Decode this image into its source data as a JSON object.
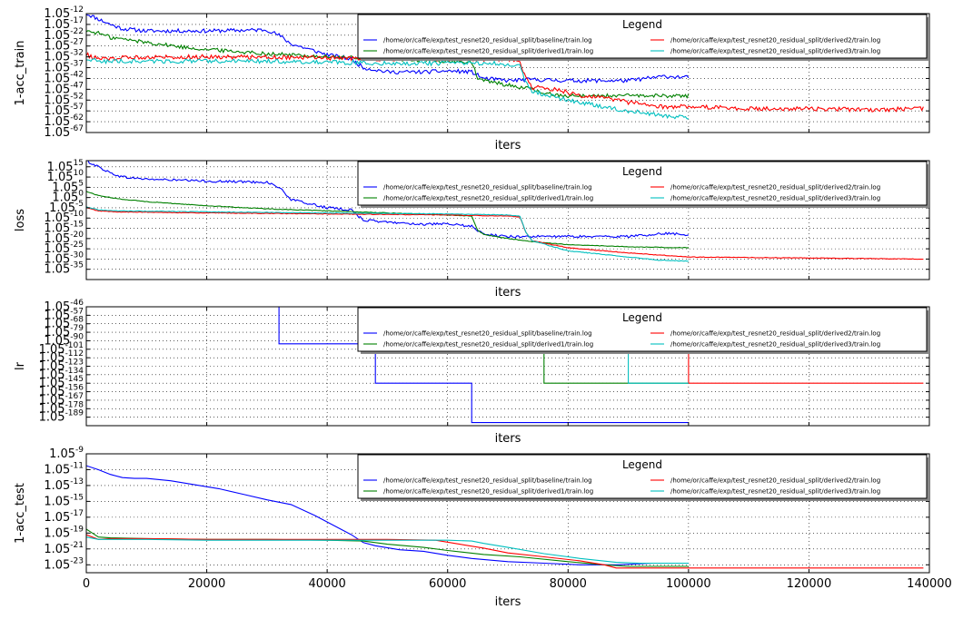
{
  "chart_data": [
    {
      "type": "line",
      "ylabel": "1-acc_train",
      "xlabel": "iters",
      "xlim": [
        0,
        140000
      ],
      "grid": true,
      "legend_placement": "top-right",
      "ytick_base": "1.05",
      "ytick_exponents": [
        "-12",
        "-17",
        "-22",
        "-27",
        "-32",
        "-37",
        "-42",
        "-47",
        "-52",
        "-57",
        "-62",
        "-67"
      ],
      "ylim": [
        -67,
        -12
      ],
      "legend": {
        "title": "Legend",
        "entries": [
          "/home/or/caffe/exp/test_resnet20_residual_split/baseline/train.log",
          "/home/or/caffe/exp/test_resnet20_residual_split/derived1/train.log",
          "/home/or/caffe/exp/test_resnet20_residual_split/derived2/train.log",
          "/home/or/caffe/exp/test_resnet20_residual_split/derived3/train.log"
        ]
      },
      "series": [
        {
          "name": "/home/or/caffe/exp/test_resnet20_residual_split/baseline/train.log",
          "color": "#0000ff",
          "noise": 0.9,
          "x": [
            0,
            2000,
            4000,
            6000,
            10000,
            20000,
            30000,
            32000,
            34000,
            40000,
            44000,
            46000,
            50000,
            56000,
            60000,
            64000,
            66000,
            70000,
            74000,
            80000,
            90000,
            96000,
            100000
          ],
          "y": [
            -12,
            -14.5,
            -17,
            -19,
            -20,
            -20,
            -19.5,
            -22,
            -26,
            -31,
            -33,
            -37,
            -39,
            -39,
            -38.5,
            -39,
            -42,
            -43,
            -42.5,
            -43,
            -43,
            -41,
            -41.5
          ]
        },
        {
          "name": "/home/or/caffe/exp/test_resnet20_residual_split/derived1/train.log",
          "color": "#008000",
          "noise": 0.9,
          "x": [
            0,
            2000,
            4000,
            8000,
            12000,
            16000,
            20000,
            30000,
            40000,
            50000,
            60000,
            64000,
            65000,
            66000,
            70000,
            74000,
            76000,
            80000,
            84000,
            90000,
            100000
          ],
          "y": [
            -20,
            -21,
            -23,
            -24.5,
            -26,
            -27.5,
            -28.5,
            -30.5,
            -32,
            -33,
            -34,
            -34.5,
            -42,
            -43,
            -45,
            -47,
            -49,
            -50,
            -50,
            -50,
            -50
          ]
        },
        {
          "name": "/home/or/caffe/exp/test_resnet20_residual_split/derived2/train.log",
          "color": "#ff0000",
          "noise": 1.0,
          "x": [
            0,
            2000,
            10000,
            20000,
            30000,
            40000,
            50000,
            60000,
            70000,
            72000,
            73000,
            74000,
            78000,
            82000,
            86000,
            90000,
            95000,
            100000,
            110000,
            120000,
            130000,
            139000
          ],
          "y": [
            -31,
            -33,
            -32,
            -32,
            -32,
            -32.5,
            -33,
            -33,
            -33,
            -34,
            -42,
            -46,
            -47,
            -50,
            -51,
            -53,
            -55,
            -55,
            -56,
            -56,
            -56.5,
            -56
          ]
        },
        {
          "name": "/home/or/caffe/exp/test_resnet20_residual_split/derived3/train.log",
          "color": "#00bfbf",
          "noise": 1.0,
          "x": [
            0,
            2000,
            10000,
            20000,
            30000,
            40000,
            50000,
            60000,
            68000,
            70000,
            72000,
            73000,
            74000,
            80000,
            86000,
            90000,
            95000,
            100000
          ],
          "y": [
            -33,
            -34,
            -34,
            -34,
            -34,
            -34.5,
            -35,
            -35,
            -35,
            -35.5,
            -36,
            -44,
            -48,
            -52,
            -55,
            -57,
            -59,
            -60
          ]
        }
      ]
    },
    {
      "type": "line",
      "ylabel": "loss",
      "xlabel": "iters",
      "xlim": [
        0,
        140000
      ],
      "grid": true,
      "legend_placement": "top-right",
      "ytick_base": "1.05",
      "ytick_exponents": [
        "15",
        "10",
        "5",
        "0",
        "-5",
        "-10",
        "-15",
        "-20",
        "-25",
        "-30",
        "-35"
      ],
      "ylim": [
        -40,
        18
      ],
      "legend": {
        "title": "Legend",
        "entries": [
          "/home/or/caffe/exp/test_resnet20_residual_split/baseline/train.log",
          "/home/or/caffe/exp/test_resnet20_residual_split/derived1/train.log",
          "/home/or/caffe/exp/test_resnet20_residual_split/derived2/train.log",
          "/home/or/caffe/exp/test_resnet20_residual_split/derived3/train.log"
        ]
      },
      "series": [
        {
          "name": "/home/or/caffe/exp/test_resnet20_residual_split/baseline/train.log",
          "color": "#0000ff",
          "noise": 0.6,
          "x": [
            0,
            2000,
            4000,
            6000,
            10000,
            20000,
            30000,
            32000,
            34000,
            40000,
            44000,
            46000,
            50000,
            56000,
            60000,
            64000,
            66000,
            70000,
            74000,
            80000,
            90000,
            96000,
            100000
          ],
          "y": [
            18,
            15,
            12,
            10,
            9,
            8,
            7.5,
            5,
            -1,
            -5,
            -6,
            -11,
            -12,
            -13,
            -13,
            -14,
            -18,
            -19,
            -19,
            -19,
            -19,
            -17.5,
            -18
          ]
        },
        {
          "name": "/home/or/caffe/exp/test_resnet20_residual_split/derived1/train.log",
          "color": "#008000",
          "noise": 0.15,
          "x": [
            0,
            2000,
            5000,
            10000,
            20000,
            30000,
            40000,
            50000,
            60000,
            64000,
            65000,
            66000,
            70000,
            74000,
            80000,
            90000,
            100000
          ],
          "y": [
            3,
            1,
            -0.5,
            -2,
            -4,
            -5.5,
            -6.5,
            -7.5,
            -8.5,
            -9,
            -16,
            -18,
            -20,
            -21.5,
            -23,
            -24,
            -24.5
          ]
        },
        {
          "name": "/home/or/caffe/exp/test_resnet20_residual_split/derived2/train.log",
          "color": "#ff0000",
          "noise": 0.15,
          "x": [
            0,
            2000,
            5000,
            20000,
            40000,
            60000,
            70000,
            72000,
            73000,
            74000,
            80000,
            90000,
            100000,
            120000,
            139000
          ],
          "y": [
            -5,
            -6.5,
            -7,
            -7.5,
            -8,
            -8.5,
            -9,
            -9.5,
            -17,
            -21,
            -24.5,
            -27,
            -29,
            -29.5,
            -30
          ]
        },
        {
          "name": "/home/or/caffe/exp/test_resnet20_residual_split/derived3/train.log",
          "color": "#00bfbf",
          "noise": 0.15,
          "x": [
            0,
            2000,
            5000,
            20000,
            40000,
            60000,
            70000,
            72000,
            73000,
            74000,
            80000,
            90000,
            95000,
            100000
          ],
          "y": [
            -4.5,
            -6,
            -6.5,
            -7,
            -7.5,
            -8,
            -8.5,
            -9,
            -17,
            -21,
            -26,
            -29,
            -30.5,
            -31
          ]
        }
      ]
    },
    {
      "type": "line",
      "ylabel": "lr",
      "xlabel": "iters",
      "xlim": [
        0,
        140000
      ],
      "grid": true,
      "legend_placement": "top-right",
      "ytick_base": "1.05",
      "ytick_exponents": [
        "-46",
        "-57",
        "-68",
        "-79",
        "-90",
        "-101",
        "-112",
        "-123",
        "-134",
        "-145",
        "-156",
        "-167",
        "-178",
        "-189"
      ],
      "ylim": [
        -200,
        -46
      ],
      "legend": {
        "title": "Legend",
        "entries": [
          "/home/or/caffe/exp/test_resnet20_residual_split/baseline/train.log",
          "/home/or/caffe/exp/test_resnet20_residual_split/derived1/train.log",
          "/home/or/caffe/exp/test_resnet20_residual_split/derived2/train.log",
          "/home/or/caffe/exp/test_resnet20_residual_split/derived3/train.log"
        ]
      },
      "series": [
        {
          "name": "/home/or/caffe/exp/test_resnet20_residual_split/baseline/train.log",
          "color": "#0000ff",
          "step": true,
          "x": [
            0,
            32000,
            32000,
            48000,
            48000,
            64000,
            64000,
            100000
          ],
          "y": [
            -46,
            -46,
            -94,
            -94,
            -145,
            -145,
            -196,
            -196
          ]
        },
        {
          "name": "/home/or/caffe/exp/test_resnet20_residual_split/derived1/train.log",
          "color": "#008000",
          "step": true,
          "x": [
            0,
            64000,
            64000,
            76000,
            76000,
            100000
          ],
          "y": [
            -46,
            -46,
            -94,
            -94,
            -145,
            -145
          ]
        },
        {
          "name": "/home/or/caffe/exp/test_resnet20_residual_split/derived2/train.log",
          "color": "#ff0000",
          "step": true,
          "x": [
            0,
            72000,
            72000,
            100000,
            100000,
            139000
          ],
          "y": [
            -46,
            -46,
            -94,
            -94,
            -145,
            -145
          ]
        },
        {
          "name": "/home/or/caffe/exp/test_resnet20_residual_split/derived3/train.log",
          "color": "#00bfbf",
          "step": true,
          "x": [
            0,
            72000,
            72000,
            90000,
            90000,
            100000
          ],
          "y": [
            -46,
            -46,
            -94,
            -94,
            -145,
            -145
          ]
        }
      ]
    },
    {
      "type": "line",
      "ylabel": "1-acc_test",
      "xlabel": "iters",
      "xlim": [
        0,
        140000
      ],
      "xticks": [
        0,
        20000,
        40000,
        60000,
        80000,
        100000,
        120000,
        140000
      ],
      "grid": true,
      "legend_placement": "top-right",
      "ytick_base": "1.05",
      "ytick_exponents": [
        "-9",
        "-11",
        "-13",
        "-15",
        "-17",
        "-19",
        "-21",
        "-23"
      ],
      "ylim": [
        -24,
        -9
      ],
      "legend": {
        "title": "Legend",
        "entries": [
          "/home/or/caffe/exp/test_resnet20_residual_split/baseline/train.log",
          "/home/or/caffe/exp/test_resnet20_residual_split/derived1/train.log",
          "/home/or/caffe/exp/test_resnet20_residual_split/derived2/train.log",
          "/home/or/caffe/exp/test_resnet20_residual_split/derived3/train.log"
        ]
      },
      "series": [
        {
          "name": "/home/or/caffe/exp/test_resnet20_residual_split/baseline/train.log",
          "color": "#0000ff",
          "noise": 0,
          "x": [
            0,
            2000,
            4000,
            6000,
            8000,
            10000,
            14000,
            18000,
            22000,
            26000,
            30000,
            34000,
            38000,
            42000,
            44000,
            46000,
            48000,
            52000,
            56000,
            60000,
            64000,
            70000,
            76000,
            82000,
            88000,
            94000,
            100000
          ],
          "y": [
            -10.5,
            -11,
            -11.6,
            -12,
            -12.1,
            -12.1,
            -12.4,
            -12.9,
            -13.4,
            -14.1,
            -14.8,
            -15.4,
            -16.8,
            -18.4,
            -19.2,
            -20.2,
            -20.6,
            -21.1,
            -21.3,
            -21.8,
            -22.2,
            -22.6,
            -22.8,
            -23,
            -23,
            -22.8,
            -22.8
          ]
        },
        {
          "name": "/home/or/caffe/exp/test_resnet20_residual_split/derived1/train.log",
          "color": "#008000",
          "noise": 0,
          "x": [
            0,
            1000,
            2000,
            4000,
            10000,
            20000,
            30000,
            40000,
            46000,
            50000,
            56000,
            60000,
            66000,
            72000,
            80000,
            86000,
            90000,
            100000
          ],
          "y": [
            -18.5,
            -19,
            -19.5,
            -19.6,
            -19.7,
            -19.8,
            -19.8,
            -19.9,
            -20,
            -20.4,
            -20.8,
            -21.2,
            -21.7,
            -22,
            -22.6,
            -23,
            -23.2,
            -23.2
          ]
        },
        {
          "name": "/home/or/caffe/exp/test_resnet20_residual_split/derived2/train.log",
          "color": "#ff0000",
          "noise": 0,
          "x": [
            0,
            2000,
            4000,
            10000,
            20000,
            30000,
            40000,
            50000,
            58000,
            62000,
            66000,
            70000,
            76000,
            82000,
            86000,
            88000,
            100000,
            120000,
            139000
          ],
          "y": [
            -19.2,
            -19.8,
            -19.7,
            -19.7,
            -19.8,
            -19.8,
            -19.8,
            -19.8,
            -19.9,
            -20.4,
            -20.9,
            -21.5,
            -22,
            -22.5,
            -23,
            -23.4,
            -23.4,
            -23.4,
            -23.4
          ]
        },
        {
          "name": "/home/or/caffe/exp/test_resnet20_residual_split/derived3/train.log",
          "color": "#00bfbf",
          "noise": 0,
          "x": [
            0,
            2000,
            4000,
            10000,
            20000,
            30000,
            40000,
            50000,
            60000,
            64000,
            66000,
            70000,
            76000,
            82000,
            88000,
            92000,
            100000
          ],
          "y": [
            -19.5,
            -19.8,
            -19.8,
            -19.8,
            -19.9,
            -19.9,
            -19.9,
            -19.9,
            -19.9,
            -20,
            -20.3,
            -20.8,
            -21.6,
            -22.2,
            -22.7,
            -22.8,
            -22.8
          ]
        }
      ]
    }
  ]
}
